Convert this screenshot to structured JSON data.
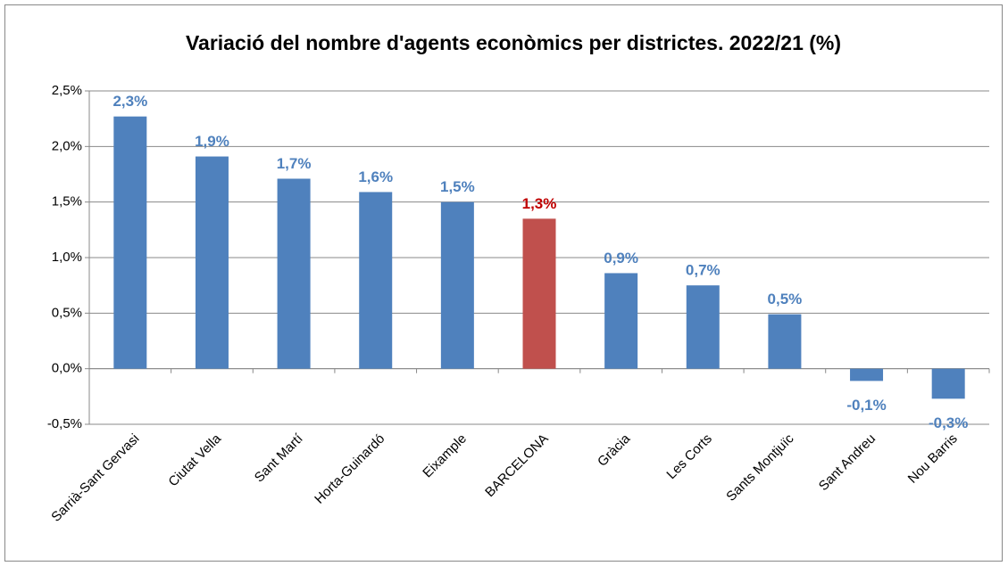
{
  "chart_data": {
    "type": "bar",
    "title": "Variació del nombre d'agents econòmics per districtes.  2022/21 (%)",
    "categories": [
      "Sarrià-Sant Gervasi",
      "Ciutat Vella",
      "Sant Martí",
      "Horta-Guinardó",
      "Eixample",
      "BARCELONA",
      "Gràcia",
      "Les Corts",
      "Sants Montjuïc",
      "Sant Andreu",
      "Nou Barris"
    ],
    "values": [
      2.27,
      1.91,
      1.71,
      1.59,
      1.5,
      1.35,
      0.86,
      0.75,
      0.49,
      -0.11,
      -0.27
    ],
    "value_labels": [
      "2,3%",
      "1,9%",
      "1,7%",
      "1,6%",
      "1,5%",
      "1,3%",
      "0,9%",
      "0,7%",
      "0,5%",
      "-0,1%",
      "-0,3%"
    ],
    "colors": [
      "#4f81bd",
      "#4f81bd",
      "#4f81bd",
      "#4f81bd",
      "#4f81bd",
      "#c0504d",
      "#4f81bd",
      "#4f81bd",
      "#4f81bd",
      "#4f81bd",
      "#4f81bd"
    ],
    "value_label_colors": [
      "#4f81bd",
      "#4f81bd",
      "#4f81bd",
      "#4f81bd",
      "#4f81bd",
      "#c00000",
      "#4f81bd",
      "#4f81bd",
      "#4f81bd",
      "#4f81bd",
      "#4f81bd"
    ],
    "ylim": [
      -0.5,
      2.5
    ],
    "yticks": [
      {
        "value": -0.5,
        "label": "-0,5%"
      },
      {
        "value": 0,
        "label": "0,0%"
      },
      {
        "value": 0.5,
        "label": "0,5%"
      },
      {
        "value": 1,
        "label": "1,0%"
      },
      {
        "value": 1.5,
        "label": "1,5%"
      },
      {
        "value": 2,
        "label": "2,0%"
      },
      {
        "value": 2.5,
        "label": "2,5%"
      }
    ],
    "grid": true
  }
}
